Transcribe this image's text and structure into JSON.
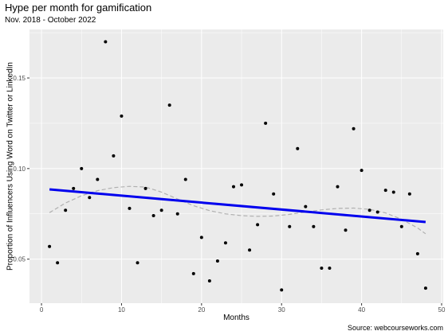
{
  "chart_data": {
    "type": "scatter",
    "title": "Hype per month for gamification",
    "subtitle": "Nov. 2018 - October 2022",
    "xlabel": "Months",
    "ylabel": "Proportion of Influencers Using Word on Twitter or LinkedIn",
    "caption": "Source: webcourseworks.com",
    "xlim": [
      -1.5,
      50.2
    ],
    "ylim": [
      0.0257,
      0.1768
    ],
    "x_ticks": [
      0,
      10,
      20,
      30,
      40,
      50
    ],
    "x_tick_labels": [
      "0",
      "10",
      "20",
      "30",
      "40",
      "50"
    ],
    "y_ticks": [
      0.05,
      0.1,
      0.15
    ],
    "y_tick_labels": [
      "0.05",
      "0.10",
      "0.15"
    ],
    "grid": true,
    "background": "#ebebeb",
    "gridline_color": "#ffffff",
    "point_color": "#000000",
    "trend_color": "#0000ee",
    "smooth_color": "#b0b0b0",
    "series": [
      {
        "x": [
          1,
          2,
          3,
          4,
          5,
          6,
          7,
          8,
          9,
          10,
          11,
          12,
          13,
          14,
          15,
          16,
          17,
          18,
          19,
          20,
          21,
          22,
          23,
          24,
          25,
          26,
          27,
          28,
          29,
          30,
          31,
          32,
          33,
          34,
          35,
          36,
          37,
          38,
          39,
          40,
          41,
          42,
          43,
          44,
          45,
          46,
          47,
          48
        ],
        "y": [
          0.057,
          0.048,
          0.077,
          0.089,
          0.1,
          0.084,
          0.094,
          0.17,
          0.107,
          0.129,
          0.078,
          0.048,
          0.089,
          0.074,
          0.077,
          0.135,
          0.075,
          0.094,
          0.042,
          0.062,
          0.038,
          0.049,
          0.059,
          0.09,
          0.091,
          0.055,
          0.069,
          0.125,
          0.086,
          0.033,
          0.068,
          0.111,
          0.079,
          0.068,
          0.045,
          0.045,
          0.09,
          0.066,
          0.122,
          0.099,
          0.077,
          0.076,
          0.088,
          0.087,
          0.068,
          0.086,
          0.053,
          0.034
        ]
      }
    ],
    "linear_trend": {
      "x": [
        1,
        48
      ],
      "y": [
        0.0885,
        0.0705
      ]
    },
    "smooth": {
      "x": [
        1,
        3,
        5,
        7,
        9,
        11,
        13,
        15,
        17,
        19,
        21,
        23,
        25,
        27,
        29,
        31,
        33,
        35,
        37,
        39,
        41,
        43,
        45,
        47,
        48
      ],
      "y": [
        0.0757,
        0.081,
        0.085,
        0.0878,
        0.0895,
        0.0902,
        0.0898,
        0.087,
        0.0832,
        0.0795,
        0.0768,
        0.075,
        0.074,
        0.0736,
        0.0738,
        0.0747,
        0.076,
        0.0772,
        0.078,
        0.0782,
        0.0775,
        0.0755,
        0.072,
        0.0672,
        0.064
      ]
    }
  }
}
